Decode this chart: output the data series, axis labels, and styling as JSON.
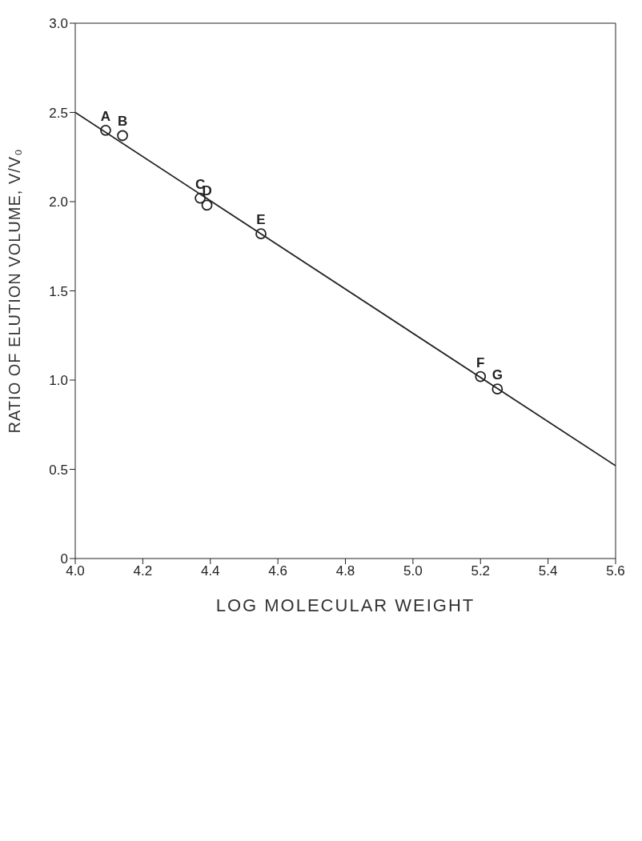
{
  "chart_data": {
    "type": "scatter",
    "xlabel": "LOG MOLECULAR WEIGHT",
    "ylabel": "RATIO OF ELUTION VOLUME, V/V₀",
    "xlim": [
      4.0,
      5.6
    ],
    "xticks": [
      {
        "value": 4.0,
        "label": "4.0"
      },
      {
        "value": 4.2,
        "label": "4.2"
      },
      {
        "value": 4.4,
        "label": "4.4"
      },
      {
        "value": 4.6,
        "label": "4.6"
      },
      {
        "value": 4.8,
        "label": "4.8"
      },
      {
        "value": 5.0,
        "label": "5.0"
      },
      {
        "value": 5.2,
        "label": "5.2"
      },
      {
        "value": 5.4,
        "label": "5.4"
      },
      {
        "value": 5.6,
        "label": "5.6"
      }
    ],
    "ylim": [
      0,
      3.0
    ],
    "yticks": [
      0,
      {
        "value": 0.5,
        "label": "0.5"
      },
      {
        "value": 1.0,
        "label": "1.0"
      },
      {
        "value": 1.5,
        "label": "1.5"
      },
      {
        "value": 2.0,
        "label": "2.0"
      },
      {
        "value": 2.5,
        "label": "2.5"
      },
      {
        "value": 3.0,
        "label": "3.0"
      }
    ],
    "series": [
      {
        "type": "scatter",
        "color": "#222222",
        "marker": "circle",
        "x": [
          4.09,
          4.14,
          4.37,
          4.39,
          4.55,
          5.2,
          5.25
        ],
        "values": [
          2.4,
          2.37,
          2.02,
          1.98,
          1.82,
          1.02,
          0.95
        ]
      },
      {
        "type": "line",
        "color": "#222222",
        "marker": "none",
        "line_style": "solid",
        "x": [
          4.0,
          5.6
        ],
        "values": [
          2.5,
          0.52
        ]
      }
    ],
    "annotations": [
      {
        "text": "A",
        "x": 4.09,
        "y": 2.4
      },
      {
        "text": "B",
        "x": 4.14,
        "y": 2.37
      },
      {
        "text": "C",
        "x": 4.37,
        "y": 2.02
      },
      {
        "text": "D",
        "x": 4.39,
        "y": 1.98
      },
      {
        "text": "E",
        "x": 4.55,
        "y": 1.82
      },
      {
        "text": "F",
        "x": 5.2,
        "y": 1.02
      },
      {
        "text": "G",
        "x": 5.25,
        "y": 0.95
      }
    ]
  }
}
